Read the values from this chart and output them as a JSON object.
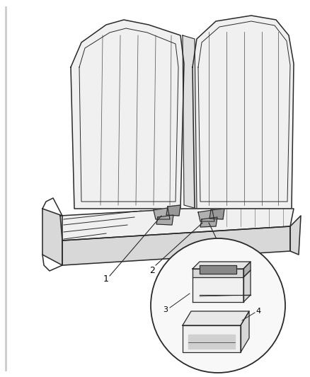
{
  "background_color": "#ffffff",
  "line_color": "#2a2a2a",
  "light_gray": "#f0f0f0",
  "mid_gray": "#d8d8d8",
  "dark_gray": "#b0b0b0",
  "label_color": "#000000",
  "figsize": [
    4.38,
    5.33
  ],
  "dpi": 100,
  "border_left_color": "#bbbbbb"
}
